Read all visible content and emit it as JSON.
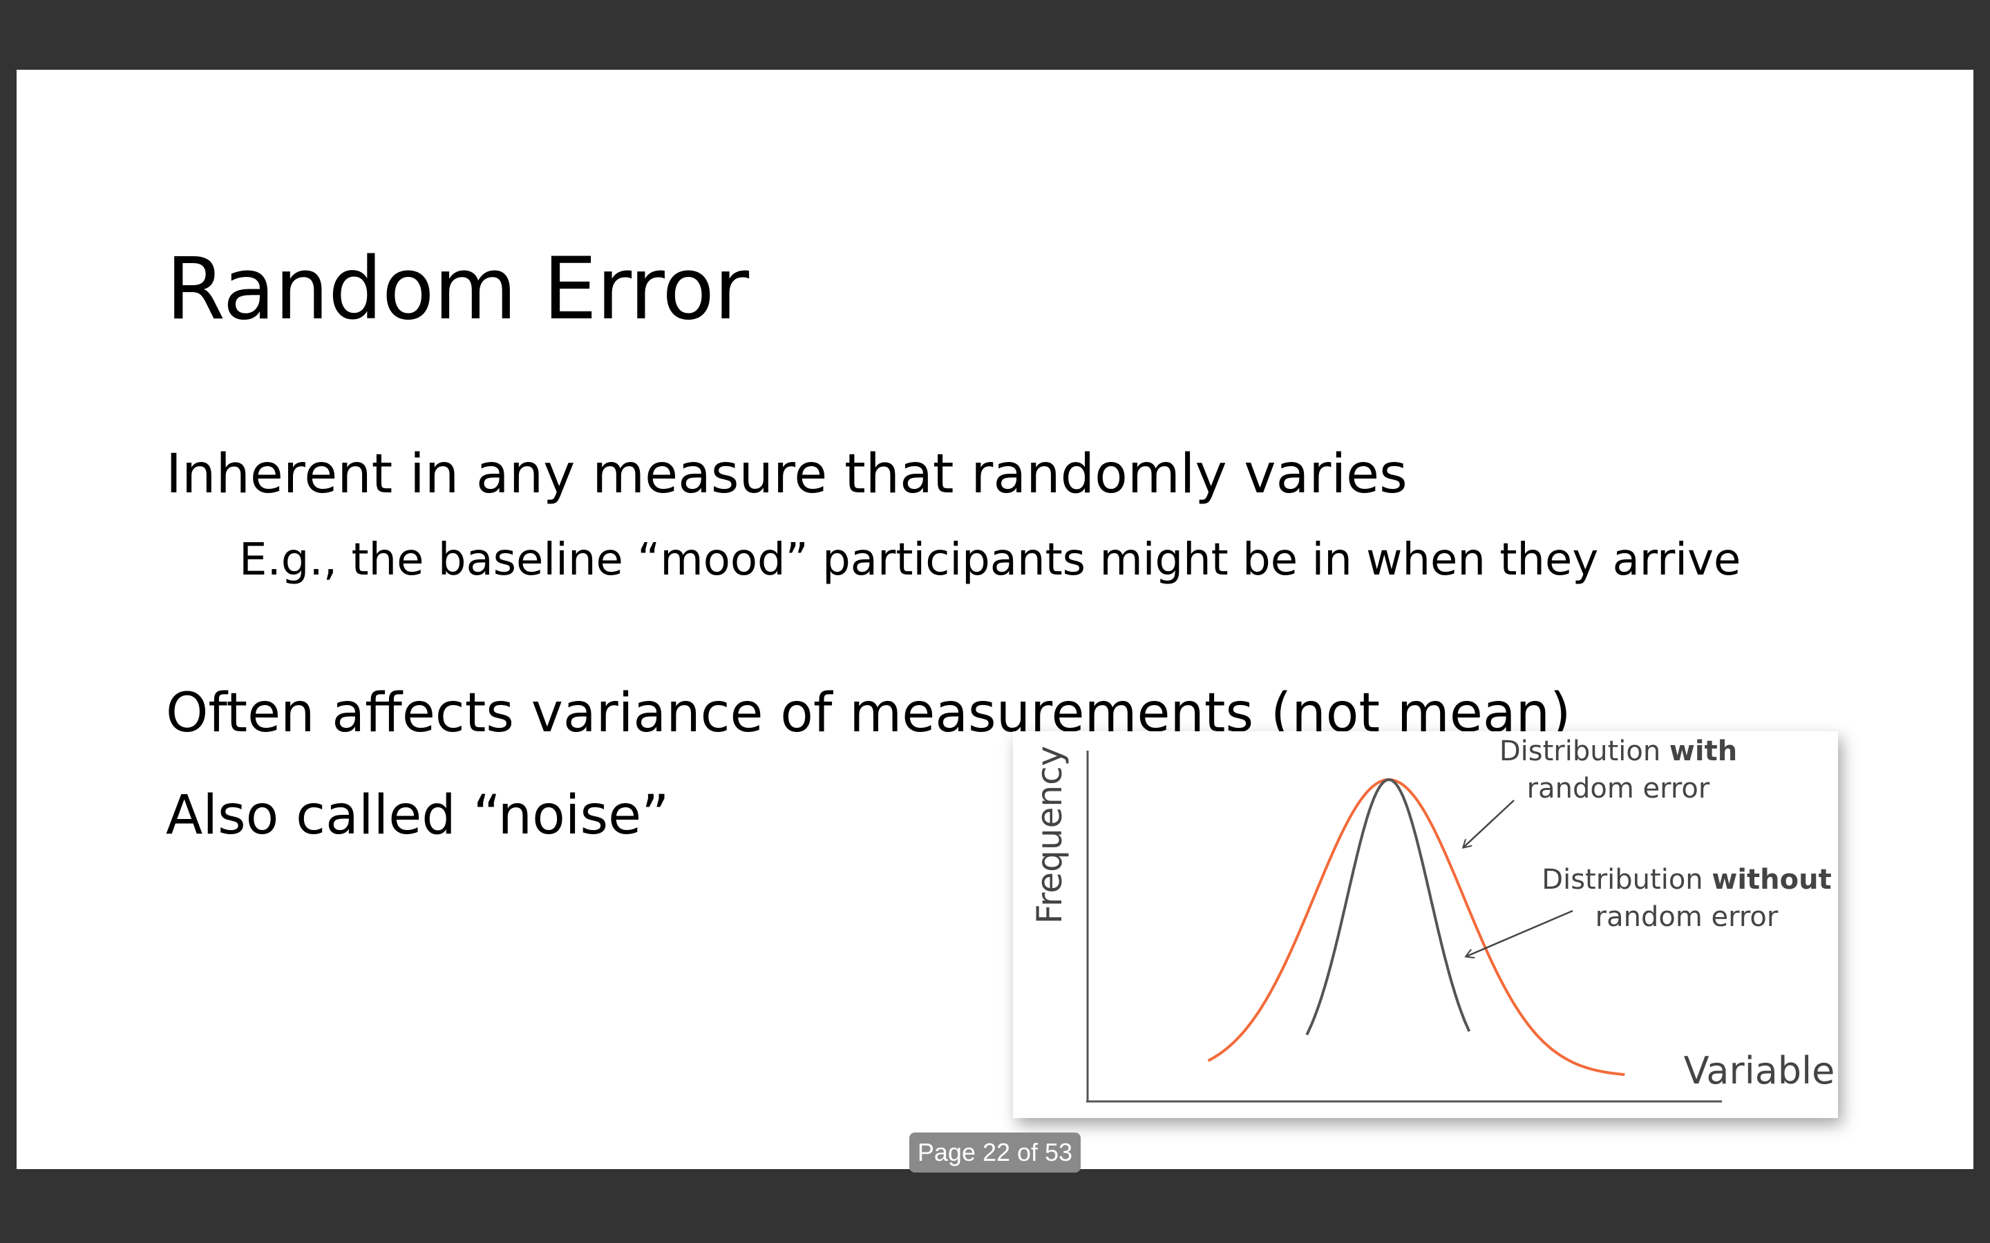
{
  "slide": {
    "title": "Random Error",
    "bullets": [
      "Inherent in any measure that randomly varies",
      "E.g., the baseline “mood” participants might be in when they arrive",
      "Often affects variance of measurements (not mean)",
      "Also called “noise”"
    ]
  },
  "figure": {
    "y_label": "Frequency",
    "x_label": "Variable",
    "with_error_label": {
      "line1_normal": "Distribution ",
      "line1_bold": "with",
      "line2": "random error"
    },
    "without_error_label": {
      "line1_normal": "Distribution ",
      "line1_bold": "without",
      "line2": "random error"
    },
    "colors": {
      "with_error_curve": "#f26b3a",
      "without_error_curve": "#555555",
      "axes": "#555555"
    }
  },
  "chart_data": {
    "type": "line",
    "xlabel": "Variable",
    "ylabel": "Frequency",
    "grid": false,
    "series": [
      {
        "name": "Distribution with random error",
        "distribution": "normal",
        "mean": 0,
        "sd": 1.8
      },
      {
        "name": "Distribution without random error",
        "distribution": "normal",
        "mean": 0,
        "sd": 1.0
      }
    ]
  },
  "viewer": {
    "page_indicator": "Page 22 of 53"
  }
}
